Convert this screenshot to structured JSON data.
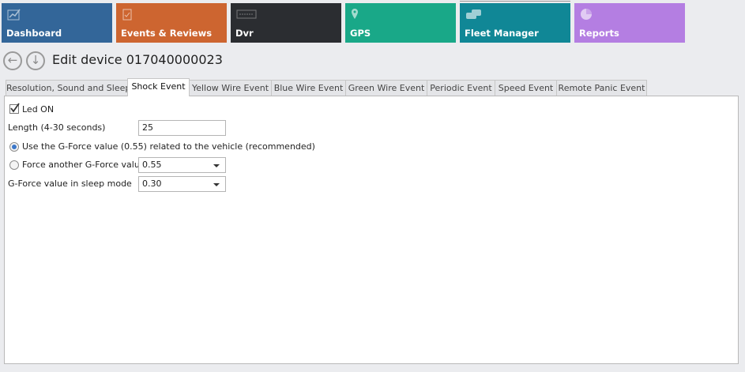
{
  "nav_tiles": [
    {
      "label": "Dashboard",
      "icon": "chart-line-icon",
      "color": "#336699"
    },
    {
      "label": "Events & Reviews",
      "icon": "clipboard-check-icon",
      "color": "#cd6530"
    },
    {
      "label": "Dvr",
      "icon": "dvr-logo-icon",
      "color": "#2b2d31"
    },
    {
      "label": "GPS",
      "icon": "map-pin-icon",
      "color": "#19a888"
    },
    {
      "label": "Fleet Manager",
      "icon": "cars-icon",
      "color": "#108796"
    },
    {
      "label": "Reports",
      "icon": "pie-chart-icon",
      "color": "#b47ee2"
    }
  ],
  "header": {
    "title": "Edit device 017040000023"
  },
  "tabs": [
    "Resolution, Sound and Sleep",
    "Shock Event",
    "Yellow Wire Event",
    "Blue Wire Event",
    "Green Wire Event",
    "Periodic Event",
    "Speed Event",
    "Remote Panic Event"
  ],
  "selected_tab": "Shock Event",
  "form": {
    "led_label": "Led ON",
    "led_checked": true,
    "length_label": "Length (4-30 seconds)",
    "length_value": "25",
    "radio_recommended_label": "Use the G-Force value (0.55) related to the vehicle (recommended)",
    "radio_force_label": "Force another G-Force value",
    "force_value": "0.55",
    "sleep_label": "G-Force value in sleep mode",
    "sleep_value": "0.30"
  }
}
